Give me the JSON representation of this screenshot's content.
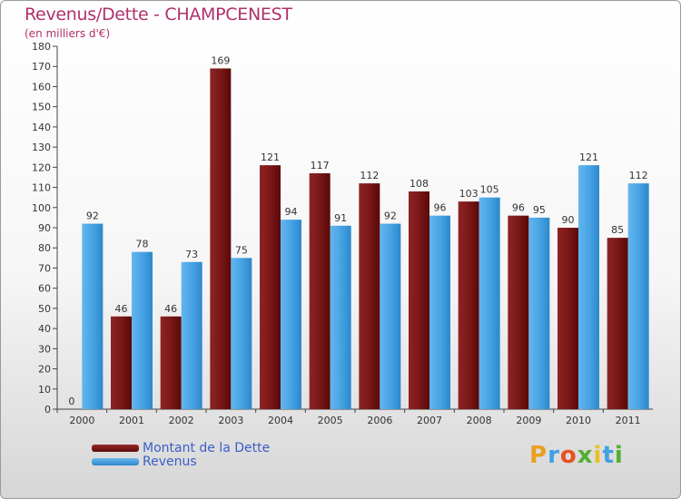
{
  "header": {
    "title": "Revenus/Dette - CHAMPCENEST",
    "subtitle": "(en milliers d'€)"
  },
  "legend": {
    "items": [
      {
        "label": "Montant de la Dette",
        "color": "#7a1616"
      },
      {
        "label": "Revenus",
        "color": "#3f9fe0"
      }
    ]
  },
  "logo": {
    "text": "Proxiti",
    "letters": [
      "P",
      "r",
      "o",
      "x",
      "i",
      "t",
      "i"
    ],
    "colors": [
      "#e8a020",
      "#3fa0e0",
      "#e85020",
      "#50b030",
      "#e8c020",
      "#3fa0e0",
      "#50b030"
    ]
  },
  "chart_data": {
    "type": "bar",
    "title": "Revenus/Dette - CHAMPCENEST",
    "subtitle": "(en milliers d'€)",
    "categories": [
      "2000",
      "2001",
      "2002",
      "2003",
      "2004",
      "2005",
      "2006",
      "2007",
      "2008",
      "2009",
      "2010",
      "2011"
    ],
    "series": [
      {
        "name": "Montant de la Dette",
        "color": "#7a1616",
        "values": [
          0,
          46,
          46,
          169,
          121,
          117,
          112,
          108,
          103,
          96,
          90,
          85
        ]
      },
      {
        "name": "Revenus",
        "color": "#3f9fe0",
        "values": [
          92,
          78,
          73,
          75,
          94,
          91,
          92,
          96,
          105,
          95,
          121,
          112
        ]
      }
    ],
    "ylim": [
      0,
      180
    ],
    "yticks": [
      0,
      10,
      20,
      30,
      40,
      50,
      60,
      70,
      80,
      90,
      100,
      110,
      120,
      130,
      140,
      150,
      160,
      170,
      180
    ],
    "grid": false,
    "data_labels": true,
    "legend_position": "bottom-left"
  }
}
